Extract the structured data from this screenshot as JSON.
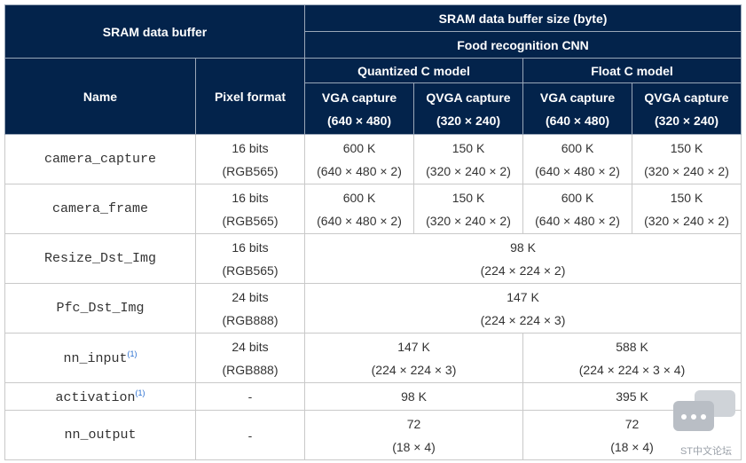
{
  "header": {
    "sram_buffer": "SRAM data buffer",
    "buffer_size": "SRAM data buffer size (byte)",
    "cnn": "Food recognition CNN",
    "name": "Name",
    "pixel_format": "Pixel format",
    "quantized": "Quantized C model",
    "float": "Float C model",
    "vga": "VGA capture",
    "vga_dim": "(640 × 480)",
    "qvga": "QVGA capture",
    "qvga_dim": "(320 × 240)"
  },
  "rows": [
    {
      "name": "camera_capture",
      "fmt1": "16 bits",
      "fmt2": "(RGB565)",
      "q_vga": "600 K",
      "q_vga_d": "(640 × 480 × 2)",
      "q_qvga": "150 K",
      "q_qvga_d": "(320 × 240 × 2)",
      "f_vga": "600 K",
      "f_vga_d": "(640 × 480 × 2)",
      "f_qvga": "150 K",
      "f_qvga_d": "(320 × 240 × 2)"
    },
    {
      "name": "camera_frame",
      "fmt1": "16 bits",
      "fmt2": "(RGB565)",
      "q_vga": "600 K",
      "q_vga_d": "(640 × 480 × 2)",
      "q_qvga": "150 K",
      "q_qvga_d": "(320 × 240 × 2)",
      "f_vga": "600 K",
      "f_vga_d": "(640 × 480 × 2)",
      "f_qvga": "150 K",
      "f_qvga_d": "(320 × 240 × 2)"
    },
    {
      "name": "Resize_Dst_Img",
      "fmt1": "16 bits",
      "fmt2": "(RGB565)",
      "all": "98 K",
      "all_d": "(224 × 224 × 2)"
    },
    {
      "name": "Pfc_Dst_Img",
      "fmt1": "24 bits",
      "fmt2": "(RGB888)",
      "all": "147 K",
      "all_d": "(224 × 224 × 3)"
    },
    {
      "name": "nn_input",
      "note": "(1)",
      "fmt1": "24 bits",
      "fmt2": "(RGB888)",
      "q": "147 K",
      "q_d": "(224 × 224 × 3)",
      "f": "588 K",
      "f_d": "(224 × 224 × 3 × 4)"
    },
    {
      "name": "activation",
      "note": "(1)",
      "fmt1": "-",
      "q": "98 K",
      "f": "395 K"
    },
    {
      "name": "nn_output",
      "fmt1": "-",
      "q": "72",
      "q_d": "(18 × 4)",
      "f": "72",
      "f_d": "(18 × 4)"
    }
  ],
  "watermark": {
    "icon": "chat-bubbles-icon",
    "text": "ST中文论坛"
  }
}
